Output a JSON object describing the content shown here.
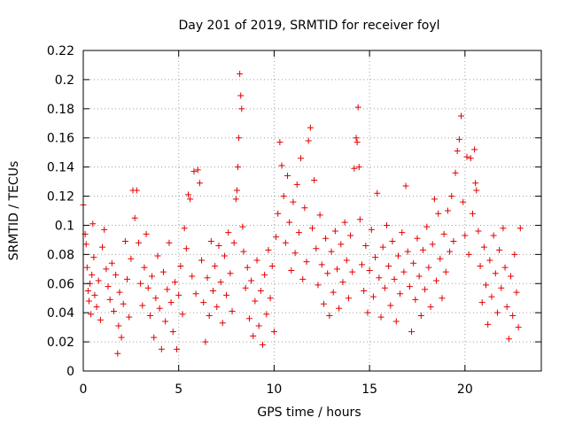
{
  "chart_data": {
    "type": "scatter",
    "title": "Day 201 of 2019, SRMTID for receiver foyl",
    "xlabel": "GPS time / hours",
    "ylabel": "SRMTID / TECUs",
    "xlim": [
      0,
      24
    ],
    "ylim": [
      0,
      0.22
    ],
    "xticks": [
      0,
      5,
      10,
      15,
      20
    ],
    "xtick_labels": [
      "0",
      "5",
      "10",
      "15",
      "20"
    ],
    "yticks": [
      0,
      0.02,
      0.04,
      0.06,
      0.08,
      0.1,
      0.12,
      0.14,
      0.16,
      0.18,
      0.2,
      0.22
    ],
    "ytick_labels": [
      "0",
      "0.02",
      "0.04",
      "0.06",
      "0.08",
      "0.1",
      "0.12",
      "0.14",
      "0.16",
      "0.18",
      "0.2",
      "0.22"
    ],
    "grid": true,
    "legend": "none",
    "marker": "+",
    "color": "#e00000",
    "series": [
      {
        "name": "SRMTID",
        "points": [
          [
            0.0,
            0.114
          ],
          [
            0.1,
            0.094
          ],
          [
            0.15,
            0.087
          ],
          [
            0.2,
            0.071
          ],
          [
            0.25,
            0.055
          ],
          [
            0.3,
            0.048
          ],
          [
            0.35,
            0.06
          ],
          [
            0.4,
            0.039
          ],
          [
            0.45,
            0.066
          ],
          [
            0.5,
            0.101
          ],
          [
            0.55,
            0.078
          ],
          [
            0.6,
            0.052
          ],
          [
            0.7,
            0.044
          ],
          [
            0.8,
            0.062
          ],
          [
            0.9,
            0.035
          ],
          [
            1.0,
            0.085
          ],
          [
            1.1,
            0.097
          ],
          [
            1.2,
            0.07
          ],
          [
            1.3,
            0.058
          ],
          [
            1.4,
            0.049
          ],
          [
            1.5,
            0.074
          ],
          [
            1.6,
            0.041
          ],
          [
            1.7,
            0.066
          ],
          [
            1.8,
            0.012
          ],
          [
            1.85,
            0.031
          ],
          [
            1.9,
            0.054
          ],
          [
            2.0,
            0.023
          ],
          [
            2.1,
            0.046
          ],
          [
            2.2,
            0.089
          ],
          [
            2.3,
            0.063
          ],
          [
            2.4,
            0.037
          ],
          [
            2.5,
            0.077
          ],
          [
            2.6,
            0.124
          ],
          [
            2.7,
            0.105
          ],
          [
            2.8,
            0.124
          ],
          [
            2.9,
            0.088
          ],
          [
            3.0,
            0.06
          ],
          [
            3.1,
            0.045
          ],
          [
            3.2,
            0.071
          ],
          [
            3.3,
            0.094
          ],
          [
            3.4,
            0.057
          ],
          [
            3.5,
            0.038
          ],
          [
            3.6,
            0.065
          ],
          [
            3.7,
            0.023
          ],
          [
            3.8,
            0.05
          ],
          [
            3.9,
            0.079
          ],
          [
            4.0,
            0.043
          ],
          [
            4.1,
            0.015
          ],
          [
            4.2,
            0.068
          ],
          [
            4.3,
            0.034
          ],
          [
            4.4,
            0.056
          ],
          [
            4.5,
            0.088
          ],
          [
            4.6,
            0.047
          ],
          [
            4.7,
            0.027
          ],
          [
            4.8,
            0.061
          ],
          [
            4.9,
            0.015
          ],
          [
            5.0,
            0.052
          ],
          [
            5.1,
            0.072
          ],
          [
            5.2,
            0.039
          ],
          [
            5.3,
            0.098
          ],
          [
            5.4,
            0.084
          ],
          [
            5.5,
            0.121
          ],
          [
            5.6,
            0.118
          ],
          [
            5.7,
            0.065
          ],
          [
            5.8,
            0.137
          ],
          [
            5.9,
            0.053
          ],
          [
            6.0,
            0.138
          ],
          [
            6.1,
            0.129
          ],
          [
            6.2,
            0.076
          ],
          [
            6.3,
            0.047
          ],
          [
            6.4,
            0.02
          ],
          [
            6.5,
            0.064
          ],
          [
            6.6,
            0.038
          ],
          [
            6.7,
            0.089
          ],
          [
            6.8,
            0.055
          ],
          [
            6.9,
            0.072
          ],
          [
            7.0,
            0.044
          ],
          [
            7.1,
            0.086
          ],
          [
            7.2,
            0.061
          ],
          [
            7.3,
            0.033
          ],
          [
            7.4,
            0.079
          ],
          [
            7.5,
            0.052
          ],
          [
            7.6,
            0.095
          ],
          [
            7.7,
            0.067
          ],
          [
            7.8,
            0.041
          ],
          [
            7.9,
            0.088
          ],
          [
            8.0,
            0.118
          ],
          [
            8.05,
            0.124
          ],
          [
            8.1,
            0.14
          ],
          [
            8.15,
            0.16
          ],
          [
            8.2,
            0.204
          ],
          [
            8.25,
            0.189
          ],
          [
            8.3,
            0.18
          ],
          [
            8.35,
            0.099
          ],
          [
            8.4,
            0.082
          ],
          [
            8.5,
            0.057
          ],
          [
            8.6,
            0.071
          ],
          [
            8.7,
            0.036
          ],
          [
            8.8,
            0.062
          ],
          [
            8.9,
            0.024
          ],
          [
            9.0,
            0.048
          ],
          [
            9.1,
            0.076
          ],
          [
            9.2,
            0.031
          ],
          [
            9.3,
            0.055
          ],
          [
            9.4,
            0.018
          ],
          [
            9.5,
            0.066
          ],
          [
            9.6,
            0.039
          ],
          [
            9.7,
            0.083
          ],
          [
            9.8,
            0.05
          ],
          [
            9.9,
            0.072
          ],
          [
            10.0,
            0.027
          ],
          [
            10.1,
            0.092
          ],
          [
            10.2,
            0.108
          ],
          [
            10.3,
            0.157
          ],
          [
            10.4,
            0.141
          ],
          [
            10.5,
            0.12
          ],
          [
            10.6,
            0.088
          ],
          [
            10.7,
            0.134
          ],
          [
            10.8,
            0.102
          ],
          [
            10.9,
            0.069
          ],
          [
            11.0,
            0.116
          ],
          [
            11.1,
            0.081
          ],
          [
            11.2,
            0.128
          ],
          [
            11.3,
            0.095
          ],
          [
            11.4,
            0.146
          ],
          [
            11.5,
            0.063
          ],
          [
            11.6,
            0.112
          ],
          [
            11.7,
            0.075
          ],
          [
            11.8,
            0.158
          ],
          [
            11.9,
            0.167
          ],
          [
            12.0,
            0.098
          ],
          [
            12.1,
            0.131
          ],
          [
            12.2,
            0.084
          ],
          [
            12.3,
            0.059
          ],
          [
            12.4,
            0.107
          ],
          [
            12.5,
            0.073
          ],
          [
            12.6,
            0.046
          ],
          [
            12.7,
            0.091
          ],
          [
            12.8,
            0.067
          ],
          [
            12.9,
            0.038
          ],
          [
            13.0,
            0.082
          ],
          [
            13.1,
            0.054
          ],
          [
            13.2,
            0.096
          ],
          [
            13.3,
            0.07
          ],
          [
            13.4,
            0.043
          ],
          [
            13.5,
            0.087
          ],
          [
            13.6,
            0.061
          ],
          [
            13.7,
            0.102
          ],
          [
            13.8,
            0.076
          ],
          [
            13.9,
            0.05
          ],
          [
            14.0,
            0.093
          ],
          [
            14.1,
            0.068
          ],
          [
            14.2,
            0.139
          ],
          [
            14.3,
            0.16
          ],
          [
            14.35,
            0.157
          ],
          [
            14.4,
            0.181
          ],
          [
            14.45,
            0.14
          ],
          [
            14.5,
            0.104
          ],
          [
            14.6,
            0.073
          ],
          [
            14.7,
            0.055
          ],
          [
            14.8,
            0.086
          ],
          [
            14.9,
            0.04
          ],
          [
            15.0,
            0.069
          ],
          [
            15.1,
            0.097
          ],
          [
            15.2,
            0.051
          ],
          [
            15.3,
            0.078
          ],
          [
            15.4,
            0.122
          ],
          [
            15.5,
            0.064
          ],
          [
            15.6,
            0.037
          ],
          [
            15.7,
            0.085
          ],
          [
            15.8,
            0.057
          ],
          [
            15.9,
            0.1
          ],
          [
            16.0,
            0.072
          ],
          [
            16.1,
            0.045
          ],
          [
            16.2,
            0.089
          ],
          [
            16.3,
            0.063
          ],
          [
            16.4,
            0.034
          ],
          [
            16.5,
            0.079
          ],
          [
            16.6,
            0.053
          ],
          [
            16.7,
            0.095
          ],
          [
            16.8,
            0.068
          ],
          [
            16.9,
            0.127
          ],
          [
            17.0,
            0.082
          ],
          [
            17.1,
            0.058
          ],
          [
            17.2,
            0.027
          ],
          [
            17.3,
            0.074
          ],
          [
            17.4,
            0.049
          ],
          [
            17.5,
            0.091
          ],
          [
            17.6,
            0.065
          ],
          [
            17.7,
            0.038
          ],
          [
            17.8,
            0.083
          ],
          [
            17.9,
            0.056
          ],
          [
            18.0,
            0.099
          ],
          [
            18.1,
            0.071
          ],
          [
            18.2,
            0.044
          ],
          [
            18.3,
            0.087
          ],
          [
            18.4,
            0.118
          ],
          [
            18.5,
            0.062
          ],
          [
            18.6,
            0.108
          ],
          [
            18.7,
            0.077
          ],
          [
            18.8,
            0.05
          ],
          [
            18.9,
            0.094
          ],
          [
            19.0,
            0.068
          ],
          [
            19.1,
            0.11
          ],
          [
            19.2,
            0.082
          ],
          [
            19.3,
            0.12
          ],
          [
            19.4,
            0.089
          ],
          [
            19.5,
            0.136
          ],
          [
            19.6,
            0.151
          ],
          [
            19.7,
            0.159
          ],
          [
            19.8,
            0.175
          ],
          [
            19.9,
            0.116
          ],
          [
            20.0,
            0.093
          ],
          [
            20.1,
            0.147
          ],
          [
            20.2,
            0.08
          ],
          [
            20.3,
            0.146
          ],
          [
            20.4,
            0.108
          ],
          [
            20.5,
            0.152
          ],
          [
            20.55,
            0.129
          ],
          [
            20.6,
            0.124
          ],
          [
            20.7,
            0.096
          ],
          [
            20.8,
            0.072
          ],
          [
            20.9,
            0.047
          ],
          [
            21.0,
            0.085
          ],
          [
            21.1,
            0.059
          ],
          [
            21.2,
            0.032
          ],
          [
            21.3,
            0.076
          ],
          [
            21.4,
            0.051
          ],
          [
            21.5,
            0.093
          ],
          [
            21.6,
            0.067
          ],
          [
            21.7,
            0.04
          ],
          [
            21.8,
            0.083
          ],
          [
            21.9,
            0.057
          ],
          [
            22.0,
            0.098
          ],
          [
            22.1,
            0.071
          ],
          [
            22.2,
            0.044
          ],
          [
            22.3,
            0.022
          ],
          [
            22.4,
            0.065
          ],
          [
            22.5,
            0.038
          ],
          [
            22.6,
            0.08
          ],
          [
            22.7,
            0.054
          ],
          [
            22.8,
            0.03
          ],
          [
            22.9,
            0.098
          ]
        ]
      }
    ]
  }
}
